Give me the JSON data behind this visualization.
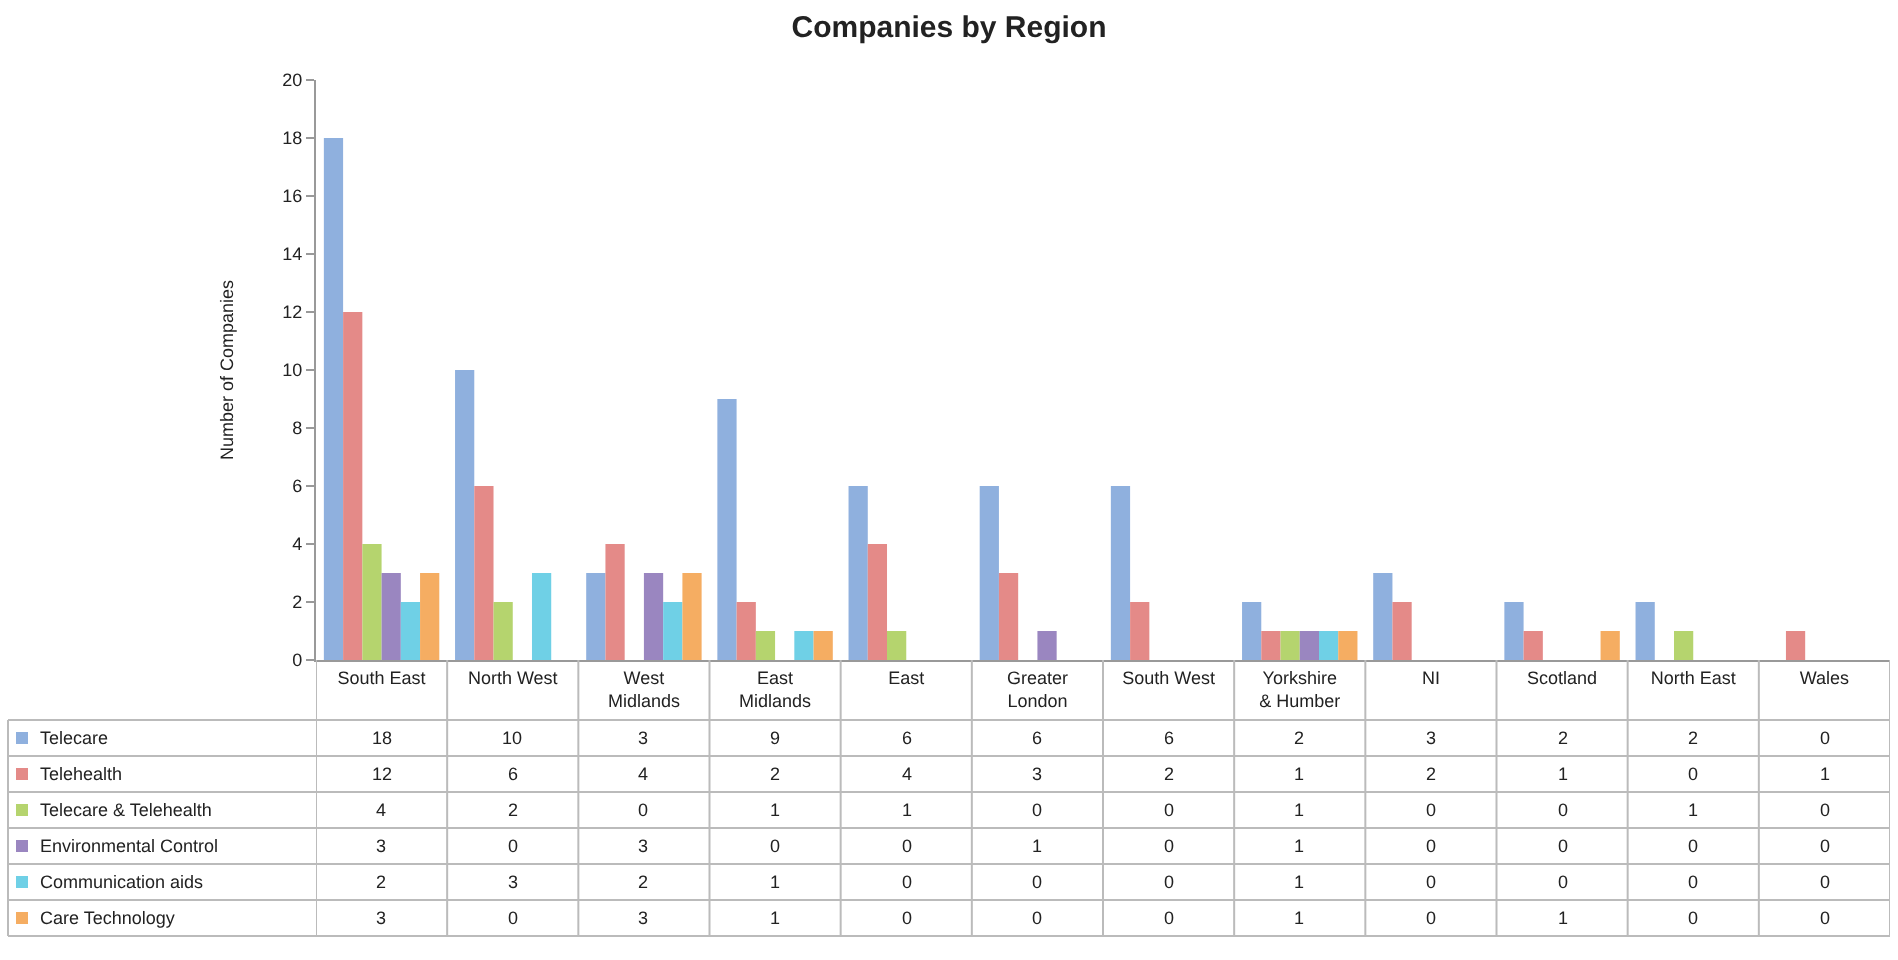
{
  "chart_data": {
    "type": "bar",
    "title": "Companies by Region",
    "ylabel": "Number of Companies",
    "categories": [
      "South East",
      "North West",
      "West Midlands",
      "East Midlands",
      "East",
      "Greater London",
      "South West",
      "Yorkshire & Humber",
      "NI",
      "Scotland",
      "North East",
      "Wales"
    ],
    "series": [
      {
        "name": "Telecare",
        "color": "#8fb0de",
        "values": [
          18,
          10,
          3,
          9,
          6,
          6,
          6,
          2,
          3,
          2,
          2,
          0
        ]
      },
      {
        "name": "Telehealth",
        "color": "#e48a88",
        "values": [
          12,
          6,
          4,
          2,
          4,
          3,
          2,
          1,
          2,
          1,
          0,
          1
        ]
      },
      {
        "name": "Telecare & Telehealth",
        "color": "#b5d46e",
        "values": [
          4,
          2,
          0,
          1,
          1,
          0,
          0,
          1,
          0,
          0,
          1,
          0
        ]
      },
      {
        "name": "Environmental Control",
        "color": "#9a86c0",
        "values": [
          3,
          0,
          3,
          0,
          0,
          1,
          0,
          1,
          0,
          0,
          0,
          0
        ]
      },
      {
        "name": "Communication aids",
        "color": "#6fd0e6",
        "values": [
          2,
          3,
          2,
          1,
          0,
          0,
          0,
          1,
          0,
          0,
          0,
          0
        ]
      },
      {
        "name": "Care Technology",
        "color": "#f5ad62",
        "values": [
          3,
          0,
          3,
          1,
          0,
          0,
          0,
          1,
          0,
          1,
          0,
          0
        ]
      }
    ],
    "ylim": [
      0,
      20
    ],
    "yticks": [
      0,
      2,
      4,
      6,
      8,
      10,
      12,
      14,
      16,
      18,
      20
    ],
    "grid": false,
    "legend": "bottom left",
    "data_labels": true
  }
}
